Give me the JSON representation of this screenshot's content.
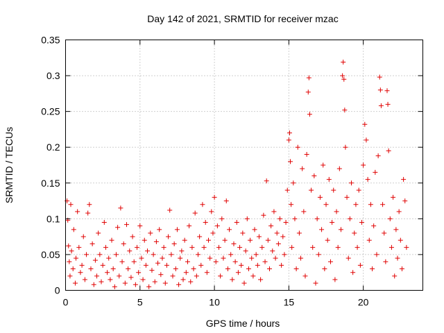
{
  "chart_data": {
    "type": "scatter",
    "title": "Day 142 of 2021, SRMTID for receiver mzac",
    "xlabel": "GPS time / hours",
    "ylabel": "SRMTID / TECUs",
    "xlim": [
      0,
      24
    ],
    "ylim": [
      0,
      0.35
    ],
    "x_ticks": [
      0,
      5,
      10,
      15,
      20
    ],
    "x_tick_labels": [
      "0",
      "5",
      "10",
      "15",
      "20"
    ],
    "y_ticks": [
      0,
      0.05,
      0.1,
      0.15,
      0.2,
      0.25,
      0.3,
      0.35
    ],
    "y_tick_labels": [
      "0",
      "0.05",
      "0.1",
      "0.15",
      "0.2",
      "0.25",
      "0.3",
      "0.35"
    ],
    "grid": true,
    "marker": "plus",
    "color": "#e00000",
    "series": [
      {
        "name": "SRMTID",
        "points": [
          [
            0.1,
            0.125
          ],
          [
            0.15,
            0.098
          ],
          [
            0.2,
            0.062
          ],
          [
            0.25,
            0.04
          ],
          [
            0.3,
            0.02
          ],
          [
            0.35,
            0.12
          ],
          [
            0.4,
            0.055
          ],
          [
            0.5,
            0.03
          ],
          [
            0.55,
            0.085
          ],
          [
            0.65,
            0.01
          ],
          [
            0.7,
            0.045
          ],
          [
            0.8,
            0.11
          ],
          [
            0.9,
            0.06
          ],
          [
            1.0,
            0.025
          ],
          [
            1.1,
            0.035
          ],
          [
            1.2,
            0.075
          ],
          [
            1.3,
            0.015
          ],
          [
            1.4,
            0.05
          ],
          [
            1.5,
            0.108
          ],
          [
            1.6,
            0.12
          ],
          [
            1.7,
            0.03
          ],
          [
            1.8,
            0.065
          ],
          [
            1.9,
            0.008
          ],
          [
            2.0,
            0.042
          ],
          [
            2.1,
            0.02
          ],
          [
            2.2,
            0.08
          ],
          [
            2.3,
            0.05
          ],
          [
            2.4,
            0.012
          ],
          [
            2.5,
            0.035
          ],
          [
            2.6,
            0.095
          ],
          [
            2.7,
            0.06
          ],
          [
            2.8,
            0.025
          ],
          [
            2.9,
            0.045
          ],
          [
            3.0,
            0.015
          ],
          [
            3.1,
            0.07
          ],
          [
            3.2,
            0.03
          ],
          [
            3.3,
            0.005
          ],
          [
            3.4,
            0.05
          ],
          [
            3.5,
            0.088
          ],
          [
            3.6,
            0.02
          ],
          [
            3.7,
            0.115
          ],
          [
            3.8,
            0.04
          ],
          [
            3.9,
            0.065
          ],
          [
            4.0,
            0.01
          ],
          [
            4.1,
            0.092
          ],
          [
            4.2,
            0.03
          ],
          [
            4.3,
            0.055
          ],
          [
            4.4,
            0.018
          ],
          [
            4.5,
            0.075
          ],
          [
            4.6,
            0.04
          ],
          [
            4.7,
            0.008
          ],
          [
            4.8,
            0.06
          ],
          [
            4.9,
            0.025
          ],
          [
            5.0,
            0.09
          ],
          [
            5.1,
            0.045
          ],
          [
            5.2,
            0.015
          ],
          [
            5.3,
            0.07
          ],
          [
            5.4,
            0.035
          ],
          [
            5.5,
            0.055
          ],
          [
            5.6,
            0.005
          ],
          [
            5.7,
            0.08
          ],
          [
            5.8,
            0.028
          ],
          [
            5.9,
            0.05
          ],
          [
            6.0,
            0.012
          ],
          [
            6.1,
            0.068
          ],
          [
            6.2,
            0.038
          ],
          [
            6.3,
            0.085
          ],
          [
            6.4,
            0.022
          ],
          [
            6.5,
            0.045
          ],
          [
            6.6,
            0.06
          ],
          [
            6.7,
            0.01
          ],
          [
            6.8,
            0.035
          ],
          [
            6.9,
            0.075
          ],
          [
            7.0,
            0.112
          ],
          [
            7.1,
            0.05
          ],
          [
            7.2,
            0.02
          ],
          [
            7.3,
            0.065
          ],
          [
            7.4,
            0.03
          ],
          [
            7.5,
            0.085
          ],
          [
            7.6,
            0.008
          ],
          [
            7.7,
            0.045
          ],
          [
            7.8,
            0.055
          ],
          [
            7.9,
            0.015
          ],
          [
            8.0,
            0.07
          ],
          [
            8.1,
            0.025
          ],
          [
            8.2,
            0.04
          ],
          [
            8.3,
            0.09
          ],
          [
            8.4,
            0.012
          ],
          [
            8.5,
            0.06
          ],
          [
            8.6,
            0.03
          ],
          [
            8.7,
            0.108
          ],
          [
            8.8,
            0.02
          ],
          [
            8.9,
            0.05
          ],
          [
            9.0,
            0.075
          ],
          [
            9.1,
            0.035
          ],
          [
            9.2,
            0.12
          ],
          [
            9.3,
            0.06
          ],
          [
            9.4,
            0.095
          ],
          [
            9.5,
            0.025
          ],
          [
            9.6,
            0.07
          ],
          [
            9.7,
            0.045
          ],
          [
            9.8,
            0.11
          ],
          [
            9.9,
            0.08
          ],
          [
            10.0,
            0.13
          ],
          [
            10.1,
            0.04
          ],
          [
            10.2,
            0.09
          ],
          [
            10.3,
            0.06
          ],
          [
            10.4,
            0.02
          ],
          [
            10.5,
            0.1
          ],
          [
            10.6,
            0.045
          ],
          [
            10.7,
            0.07
          ],
          [
            10.8,
            0.125
          ],
          [
            10.9,
            0.03
          ],
          [
            11.0,
            0.085
          ],
          [
            11.1,
            0.05
          ],
          [
            11.2,
            0.015
          ],
          [
            11.3,
            0.065
          ],
          [
            11.4,
            0.04
          ],
          [
            11.5,
            0.095
          ],
          [
            11.6,
            0.025
          ],
          [
            11.7,
            0.06
          ],
          [
            11.8,
            0.035
          ],
          [
            11.9,
            0.08
          ],
          [
            12.0,
            0.01
          ],
          [
            12.1,
            0.055
          ],
          [
            12.2,
            0.1
          ],
          [
            12.3,
            0.03
          ],
          [
            12.4,
            0.07
          ],
          [
            12.5,
            0.045
          ],
          [
            12.6,
            0.02
          ],
          [
            12.7,
            0.085
          ],
          [
            12.8,
            0.05
          ],
          [
            12.9,
            0.035
          ],
          [
            13.0,
            0.075
          ],
          [
            13.1,
            0.015
          ],
          [
            13.2,
            0.06
          ],
          [
            13.3,
            0.105
          ],
          [
            13.4,
            0.04
          ],
          [
            13.5,
            0.153
          ],
          [
            13.6,
            0.07
          ],
          [
            13.7,
            0.03
          ],
          [
            13.8,
            0.09
          ],
          [
            13.9,
            0.055
          ],
          [
            14.0,
            0.11
          ],
          [
            14.1,
            0.045
          ],
          [
            14.2,
            0.08
          ],
          [
            14.3,
            0.065
          ],
          [
            14.4,
            0.1
          ],
          [
            14.5,
            0.035
          ],
          [
            14.6,
            0.075
          ],
          [
            14.7,
            0.05
          ],
          [
            14.8,
            0.095
          ],
          [
            14.9,
            0.14
          ],
          [
            15.0,
            0.21
          ],
          [
            15.05,
            0.22
          ],
          [
            15.1,
            0.18
          ],
          [
            15.15,
            0.12
          ],
          [
            15.2,
            0.06
          ],
          [
            15.3,
            0.15
          ],
          [
            15.4,
            0.1
          ],
          [
            15.5,
            0.03
          ],
          [
            15.6,
            0.2
          ],
          [
            15.7,
            0.08
          ],
          [
            15.8,
            0.045
          ],
          [
            15.9,
            0.17
          ],
          [
            16.0,
            0.11
          ],
          [
            16.1,
            0.02
          ],
          [
            16.2,
            0.19
          ],
          [
            16.3,
            0.277
          ],
          [
            16.35,
            0.297
          ],
          [
            16.4,
            0.246
          ],
          [
            16.5,
            0.14
          ],
          [
            16.6,
            0.06
          ],
          [
            16.7,
            0.16
          ],
          [
            16.8,
            0.01
          ],
          [
            16.9,
            0.1
          ],
          [
            17.0,
            0.05
          ],
          [
            17.1,
            0.13
          ],
          [
            17.2,
            0.085
          ],
          [
            17.3,
            0.175
          ],
          [
            17.4,
            0.03
          ],
          [
            17.5,
            0.12
          ],
          [
            17.6,
            0.07
          ],
          [
            17.7,
            0.155
          ],
          [
            17.8,
            0.04
          ],
          [
            17.9,
            0.095
          ],
          [
            18.0,
            0.14
          ],
          [
            18.1,
            0.015
          ],
          [
            18.2,
            0.11
          ],
          [
            18.3,
            0.06
          ],
          [
            18.4,
            0.17
          ],
          [
            18.5,
            0.085
          ],
          [
            18.6,
            0.3
          ],
          [
            18.65,
            0.319
          ],
          [
            18.7,
            0.295
          ],
          [
            18.75,
            0.252
          ],
          [
            18.8,
            0.2
          ],
          [
            18.9,
            0.13
          ],
          [
            19.0,
            0.045
          ],
          [
            19.1,
            0.1
          ],
          [
            19.2,
            0.15
          ],
          [
            19.3,
            0.025
          ],
          [
            19.4,
            0.08
          ],
          [
            19.5,
            0.12
          ],
          [
            19.6,
            0.06
          ],
          [
            19.7,
            0.14
          ],
          [
            19.8,
            0.035
          ],
          [
            19.9,
            0.095
          ],
          [
            20.0,
            0.175
          ],
          [
            20.1,
            0.232
          ],
          [
            20.2,
            0.21
          ],
          [
            20.3,
            0.155
          ],
          [
            20.4,
            0.07
          ],
          [
            20.5,
            0.12
          ],
          [
            20.6,
            0.03
          ],
          [
            20.7,
            0.09
          ],
          [
            20.8,
            0.165
          ],
          [
            20.9,
            0.05
          ],
          [
            21.0,
            0.188
          ],
          [
            21.1,
            0.298
          ],
          [
            21.15,
            0.28
          ],
          [
            21.2,
            0.258
          ],
          [
            21.3,
            0.12
          ],
          [
            21.4,
            0.08
          ],
          [
            21.5,
            0.04
          ],
          [
            21.6,
            0.279
          ],
          [
            21.65,
            0.26
          ],
          [
            21.7,
            0.195
          ],
          [
            21.8,
            0.1
          ],
          [
            21.9,
            0.06
          ],
          [
            22.0,
            0.13
          ],
          [
            22.1,
            0.02
          ],
          [
            22.2,
            0.085
          ],
          [
            22.3,
            0.045
          ],
          [
            22.4,
            0.11
          ],
          [
            22.5,
            0.07
          ],
          [
            22.6,
            0.03
          ],
          [
            22.7,
            0.155
          ],
          [
            22.8,
            0.125
          ],
          [
            22.9,
            0.06
          ]
        ]
      }
    ]
  }
}
